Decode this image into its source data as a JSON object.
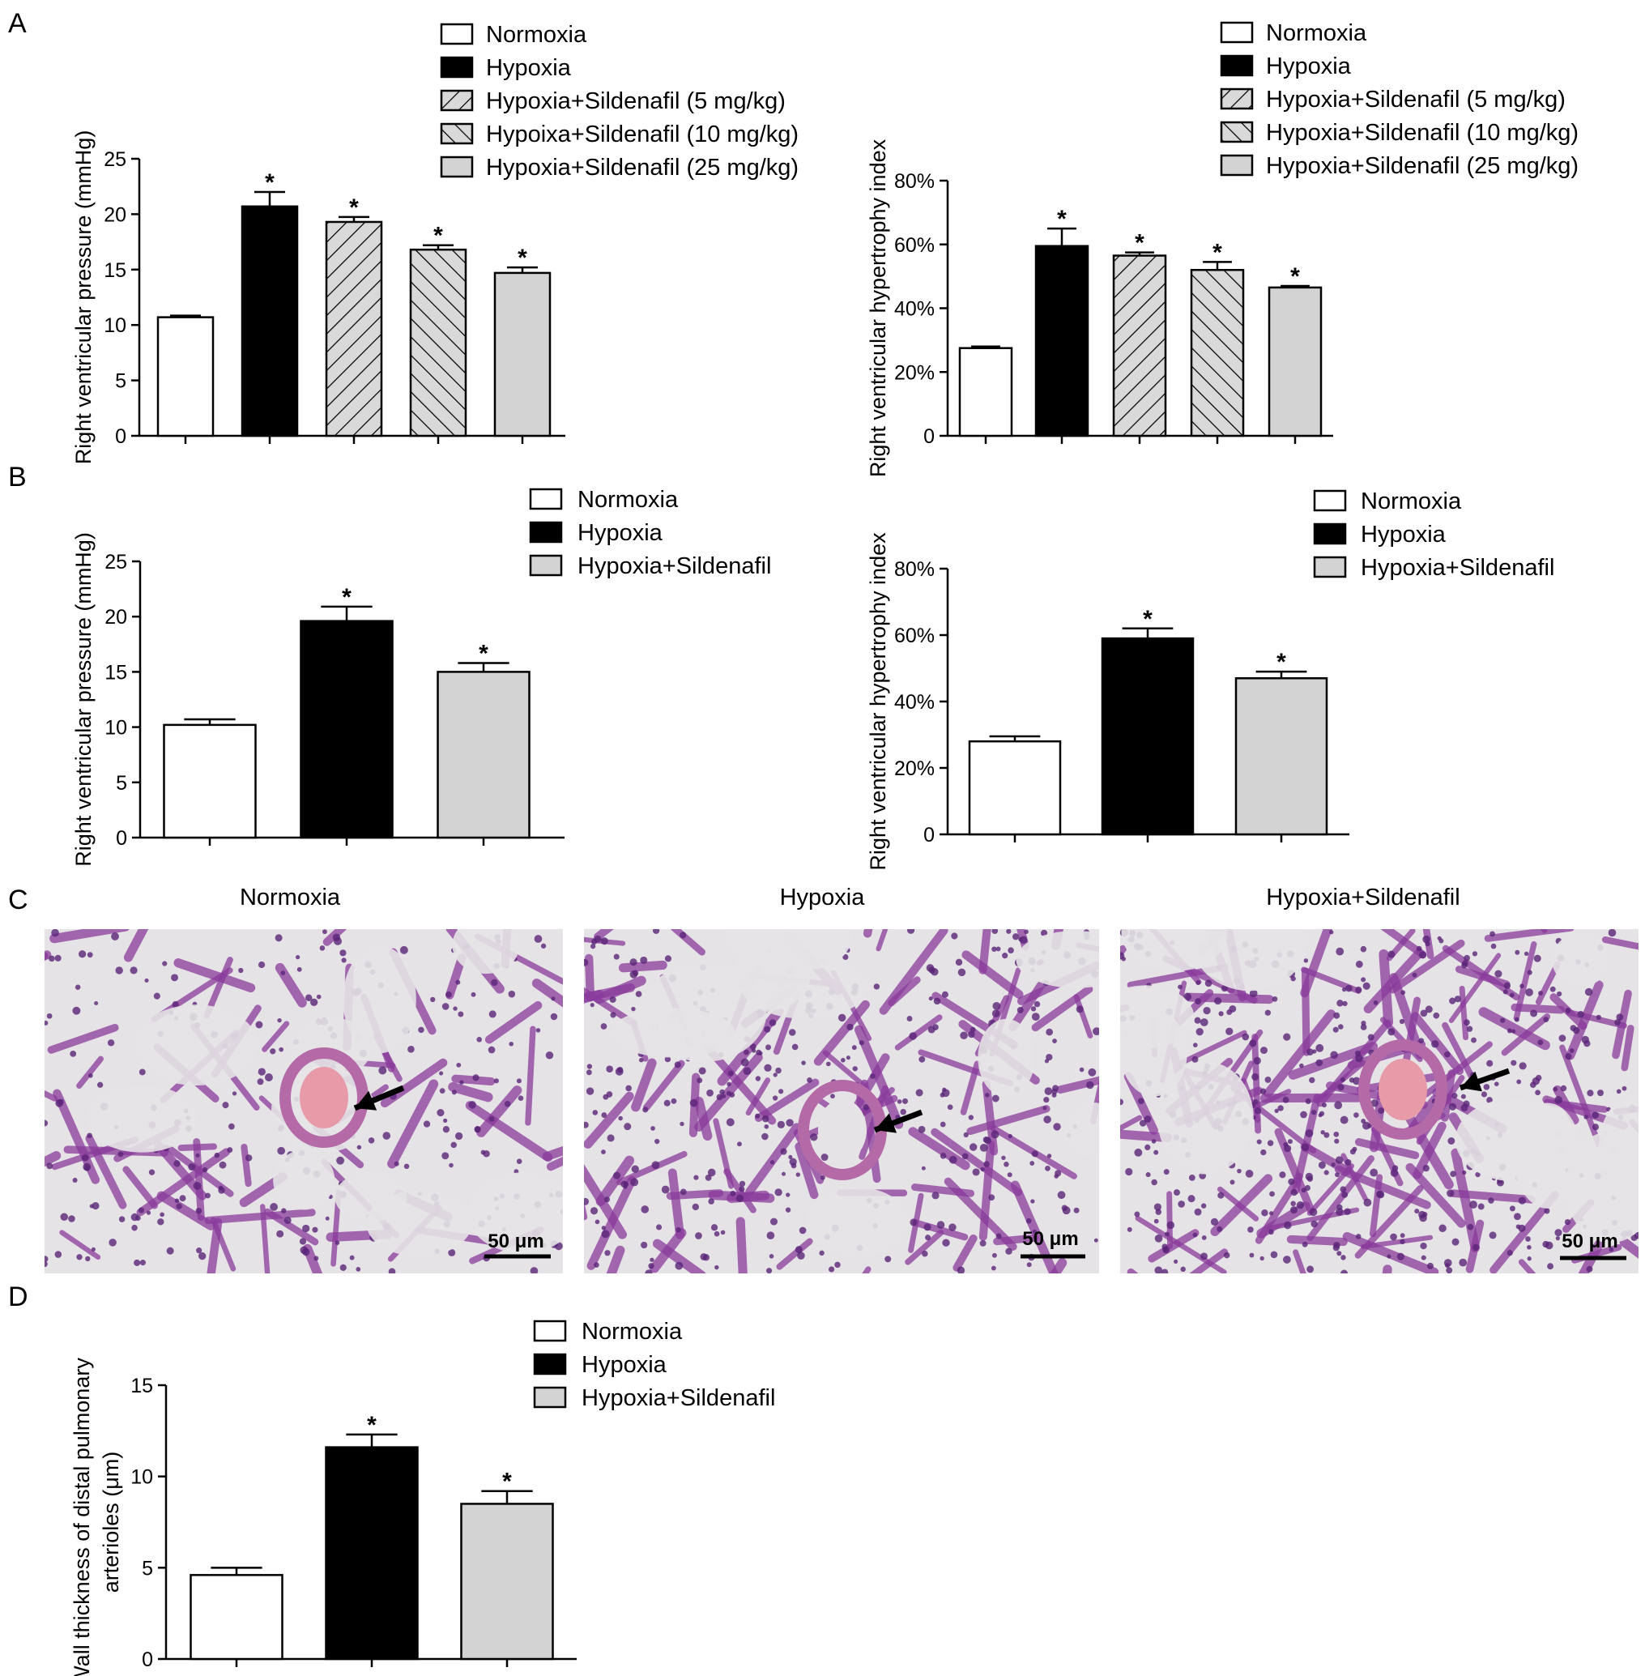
{
  "figure": {
    "panel_labels": [
      "A",
      "B",
      "C",
      "D"
    ]
  },
  "chart_data": [
    {
      "id": "A-left",
      "type": "bar",
      "ylabel": "Right ventricular pressure (mmHg)",
      "ylim": [
        0,
        25
      ],
      "yticks": [
        "0",
        "5",
        "10",
        "15",
        "20",
        "25"
      ],
      "categories": [
        "Normoxia",
        "Hypoxia",
        "Hypoxia+Sildenafil (5 mg/kg)",
        "Hypoixa+Sildenafil (10 mg/kg)",
        "Hypoxia+Sildenafil (25 mg/kg)"
      ],
      "values": [
        10.7,
        20.7,
        19.3,
        16.8,
        14.7
      ],
      "errors": [
        0.15,
        1.3,
        0.45,
        0.4,
        0.5
      ],
      "significance": [
        "",
        "*",
        "*",
        "*",
        "*"
      ],
      "fills": [
        "white",
        "black",
        "hatch-fwd",
        "hatch-back",
        "#d3d3d3"
      ],
      "legend": [
        "Normoxia",
        "Hypoxia",
        "Hypoxia+Sildenafil (5 mg/kg)",
        "Hypoixa+Sildenafil (10 mg/kg)",
        "Hypoxia+Sildenafil (25 mg/kg)"
      ],
      "legend_position": "top-right"
    },
    {
      "id": "A-right",
      "type": "bar",
      "ylabel": "Right ventricular hypertrophy index",
      "ylim": [
        0,
        80
      ],
      "yticks": [
        "0",
        "20%",
        "40%",
        "60%",
        "80%"
      ],
      "categories": [
        "Normoxia",
        "Hypoxia",
        "Hypoxia+Sildenafil (5 mg/kg)",
        "Hypoxia+Sildenafil (10 mg/kg)",
        "Hypoxia+Sildenafil (25 mg/kg)"
      ],
      "values": [
        27.5,
        59.5,
        56.5,
        52,
        46.5
      ],
      "errors": [
        0.5,
        5.5,
        1.0,
        2.5,
        0.5
      ],
      "significance": [
        "",
        "*",
        "*",
        "*",
        "*"
      ],
      "fills": [
        "white",
        "black",
        "hatch-fwd",
        "hatch-back",
        "#d3d3d3"
      ],
      "legend": [
        "Normoxia",
        "Hypoxia",
        "Hypoxia+Sildenafil (5 mg/kg)",
        "Hypoxia+Sildenafil (10 mg/kg)",
        "Hypoxia+Sildenafil (25 mg/kg)"
      ],
      "legend_position": "top-right"
    },
    {
      "id": "B-left",
      "type": "bar",
      "ylabel": "Right ventricular pressure (mmHg)",
      "ylim": [
        0,
        25
      ],
      "yticks": [
        "0",
        "5",
        "10",
        "15",
        "20",
        "25"
      ],
      "categories": [
        "Normoxia",
        "Hypoxia",
        "Hypoxia+Sildenafil"
      ],
      "values": [
        10.2,
        19.6,
        15.0
      ],
      "errors": [
        0.5,
        1.3,
        0.8
      ],
      "significance": [
        "",
        "*",
        "*"
      ],
      "fills": [
        "white",
        "black",
        "#d3d3d3"
      ],
      "legend": [
        "Normoxia",
        "Hypoxia",
        "Hypoxia+Sildenafil"
      ],
      "legend_position": "top-right"
    },
    {
      "id": "B-right",
      "type": "bar",
      "ylabel": "Right ventricular hypertrophy index",
      "ylim": [
        0,
        80
      ],
      "yticks": [
        "0",
        "20%",
        "40%",
        "60%",
        "80%"
      ],
      "categories": [
        "Normoxia",
        "Hypoxia",
        "Hypoxia+Sildenafil"
      ],
      "values": [
        28,
        59,
        47
      ],
      "errors": [
        1.5,
        3,
        2
      ],
      "significance": [
        "",
        "*",
        "*"
      ],
      "fills": [
        "white",
        "black",
        "#d3d3d3"
      ],
      "legend": [
        "Normoxia",
        "Hypoxia",
        "Hypoxia+Sildenafil"
      ],
      "legend_position": "top-right"
    },
    {
      "id": "D",
      "type": "bar",
      "ylabel_lines": [
        "Wall thickness of distal pulmonary",
        "arterioles (μm)"
      ],
      "ylim": [
        0,
        15
      ],
      "yticks": [
        "0",
        "5",
        "10",
        "15"
      ],
      "categories": [
        "Normoxia",
        "Hypoxia",
        "Hypoxia+Sildenafil"
      ],
      "values": [
        4.6,
        11.6,
        8.5
      ],
      "errors": [
        0.4,
        0.7,
        0.7
      ],
      "significance": [
        "",
        "*",
        "*"
      ],
      "fills": [
        "white",
        "black",
        "#d3d3d3"
      ],
      "legend": [
        "Normoxia",
        "Hypoxia",
        "Hypoxia+Sildenafil"
      ],
      "legend_position": "top-right"
    }
  ],
  "micrographs": {
    "titles": [
      "Normoxia",
      "Hypoxia",
      "Hypoxia+Sildenafil"
    ],
    "scale_bar_label": "50 μm",
    "tissue_color": "#8a3b9c",
    "background_color": "#e6e3e6",
    "vessel_color": "#e79aa8"
  }
}
